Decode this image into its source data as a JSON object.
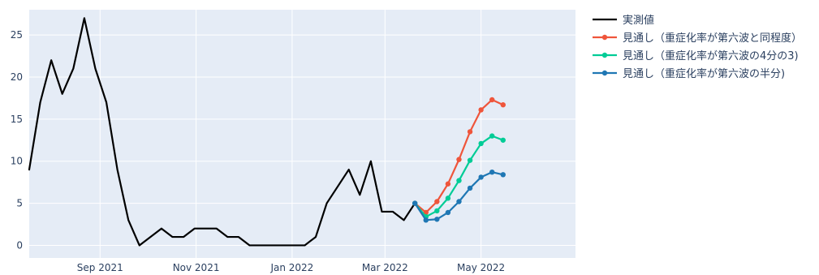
{
  "chart_data": {
    "type": "line",
    "x_axis": {
      "type": "date",
      "ticks": [
        {
          "date": "2021-09-01",
          "label": "Sep 2021"
        },
        {
          "date": "2021-11-01",
          "label": "Nov 2021"
        },
        {
          "date": "2022-01-01",
          "label": "Jan 2022"
        },
        {
          "date": "2022-03-01",
          "label": "Mar 2022"
        },
        {
          "date": "2022-05-01",
          "label": "May 2022"
        }
      ],
      "range": [
        "2021-07-18",
        "2022-06-30"
      ]
    },
    "y_axis": {
      "ticks": [
        0,
        5,
        10,
        15,
        20,
        25
      ],
      "range": [
        -1.5,
        28
      ]
    },
    "grid": true,
    "legend_position": "right",
    "series": [
      {
        "name": "実測値",
        "color": "#000000",
        "markers": false,
        "points": [
          {
            "x": "2021-07-18",
            "y": 9
          },
          {
            "x": "2021-07-25",
            "y": 17
          },
          {
            "x": "2021-08-01",
            "y": 22
          },
          {
            "x": "2021-08-08",
            "y": 18
          },
          {
            "x": "2021-08-15",
            "y": 21
          },
          {
            "x": "2021-08-22",
            "y": 27
          },
          {
            "x": "2021-08-29",
            "y": 21
          },
          {
            "x": "2021-09-05",
            "y": 17
          },
          {
            "x": "2021-09-12",
            "y": 9
          },
          {
            "x": "2021-09-19",
            "y": 3
          },
          {
            "x": "2021-09-26",
            "y": 0
          },
          {
            "x": "2021-10-03",
            "y": 1
          },
          {
            "x": "2021-10-10",
            "y": 2
          },
          {
            "x": "2021-10-17",
            "y": 1
          },
          {
            "x": "2021-10-24",
            "y": 1
          },
          {
            "x": "2021-10-31",
            "y": 2
          },
          {
            "x": "2021-11-07",
            "y": 2
          },
          {
            "x": "2021-11-14",
            "y": 2
          },
          {
            "x": "2021-11-21",
            "y": 1
          },
          {
            "x": "2021-11-28",
            "y": 1
          },
          {
            "x": "2021-12-05",
            "y": 0
          },
          {
            "x": "2021-12-12",
            "y": 0
          },
          {
            "x": "2021-12-19",
            "y": 0
          },
          {
            "x": "2021-12-26",
            "y": 0
          },
          {
            "x": "2022-01-02",
            "y": 0
          },
          {
            "x": "2022-01-09",
            "y": 0
          },
          {
            "x": "2022-01-16",
            "y": 1
          },
          {
            "x": "2022-01-23",
            "y": 5
          },
          {
            "x": "2022-01-30",
            "y": 7
          },
          {
            "x": "2022-02-06",
            "y": 9
          },
          {
            "x": "2022-02-13",
            "y": 6
          },
          {
            "x": "2022-02-20",
            "y": 10
          },
          {
            "x": "2022-02-27",
            "y": 4
          },
          {
            "x": "2022-03-06",
            "y": 4
          },
          {
            "x": "2022-03-13",
            "y": 3
          },
          {
            "x": "2022-03-20",
            "y": 5
          }
        ]
      },
      {
        "name": "見通し（重症化率が第六波と同程度）",
        "color": "#ef553b",
        "markers": true,
        "points": [
          {
            "x": "2022-03-20",
            "y": 5
          },
          {
            "x": "2022-03-27",
            "y": 3.9
          },
          {
            "x": "2022-04-03",
            "y": 5.2
          },
          {
            "x": "2022-04-10",
            "y": 7.3
          },
          {
            "x": "2022-04-17",
            "y": 10.2
          },
          {
            "x": "2022-04-24",
            "y": 13.5
          },
          {
            "x": "2022-05-01",
            "y": 16.1
          },
          {
            "x": "2022-05-08",
            "y": 17.3
          },
          {
            "x": "2022-05-15",
            "y": 16.7
          }
        ]
      },
      {
        "name": "見通し（重症化率が第六波の4分の3)",
        "color": "#00cc96",
        "markers": true,
        "points": [
          {
            "x": "2022-03-20",
            "y": 5
          },
          {
            "x": "2022-03-27",
            "y": 3.4
          },
          {
            "x": "2022-04-03",
            "y": 4.1
          },
          {
            "x": "2022-04-10",
            "y": 5.6
          },
          {
            "x": "2022-04-17",
            "y": 7.7
          },
          {
            "x": "2022-04-24",
            "y": 10.1
          },
          {
            "x": "2022-05-01",
            "y": 12.1
          },
          {
            "x": "2022-05-08",
            "y": 13.0
          },
          {
            "x": "2022-05-15",
            "y": 12.5
          }
        ]
      },
      {
        "name": "見通し（重症化率が第六波の半分)",
        "color": "#1f77b4",
        "markers": true,
        "points": [
          {
            "x": "2022-03-20",
            "y": 5
          },
          {
            "x": "2022-03-27",
            "y": 3.0
          },
          {
            "x": "2022-04-03",
            "y": 3.1
          },
          {
            "x": "2022-04-10",
            "y": 3.9
          },
          {
            "x": "2022-04-17",
            "y": 5.2
          },
          {
            "x": "2022-04-24",
            "y": 6.8
          },
          {
            "x": "2022-05-01",
            "y": 8.1
          },
          {
            "x": "2022-05-08",
            "y": 8.7
          },
          {
            "x": "2022-05-15",
            "y": 8.4
          }
        ]
      }
    ]
  },
  "colors": {
    "plot_background": "#e5ecf6",
    "grid": "#ffffff",
    "text": "#2a3f5f"
  }
}
